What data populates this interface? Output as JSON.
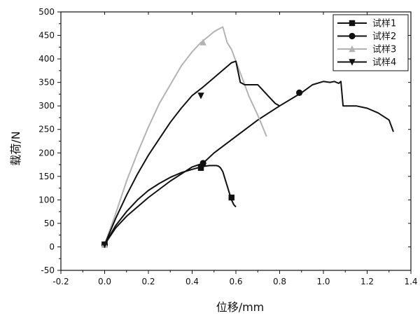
{
  "chart_data": {
    "type": "line",
    "title": "",
    "xlabel": "位移/mm",
    "ylabel": "载荷/N",
    "xlim": [
      -0.2,
      1.4
    ],
    "ylim": [
      -50,
      500
    ],
    "xticks": [
      "-0.2",
      "0.0",
      "0.2",
      "0.4",
      "0.6",
      "0.8",
      "1.0",
      "1.2",
      "1.4"
    ],
    "yticks": [
      "-50",
      "0",
      "50",
      "100",
      "150",
      "200",
      "250",
      "300",
      "350",
      "400",
      "450",
      "500"
    ],
    "legend_position": "top-right",
    "series": [
      {
        "name": "试样1",
        "color": "#111111",
        "marker": "square",
        "x": [
          0,
          0.05,
          0.1,
          0.15,
          0.2,
          0.25,
          0.3,
          0.35,
          0.4,
          0.44,
          0.46,
          0.48,
          0.5,
          0.51,
          0.52,
          0.53,
          0.54,
          0.55,
          0.56,
          0.57,
          0.58,
          0.59,
          0.6
        ],
        "y": [
          5,
          45,
          75,
          100,
          120,
          135,
          148,
          158,
          165,
          170,
          172,
          173,
          173,
          173,
          172,
          168,
          160,
          145,
          130,
          115,
          100,
          90,
          85
        ],
        "markers": [
          [
            0,
            5
          ],
          [
            0.44,
            168
          ],
          [
            0.58,
            105
          ]
        ]
      },
      {
        "name": "试样2",
        "color": "#111111",
        "marker": "circle",
        "x": [
          0,
          0.05,
          0.1,
          0.2,
          0.3,
          0.4,
          0.45,
          0.5,
          0.6,
          0.7,
          0.8,
          0.9,
          0.95,
          1.0,
          1.03,
          1.05,
          1.07,
          1.08,
          1.09,
          1.1,
          1.15,
          1.2,
          1.25,
          1.3,
          1.32
        ],
        "y": [
          5,
          40,
          65,
          105,
          140,
          170,
          178,
          200,
          235,
          270,
          300,
          328,
          345,
          352,
          350,
          352,
          348,
          352,
          300,
          300,
          300,
          295,
          285,
          270,
          245
        ],
        "markers": [
          [
            0,
            5
          ],
          [
            0.45,
            178
          ],
          [
            0.89,
            328
          ]
        ]
      },
      {
        "name": "试样3",
        "color": "#b3b3b3",
        "marker": "triangle-up",
        "x": [
          0,
          0.05,
          0.1,
          0.15,
          0.2,
          0.25,
          0.3,
          0.35,
          0.4,
          0.44,
          0.48,
          0.5,
          0.52,
          0.54,
          0.56,
          0.58,
          0.62,
          0.66,
          0.7,
          0.74
        ],
        "y": [
          5,
          70,
          140,
          200,
          255,
          305,
          345,
          385,
          415,
          435,
          450,
          458,
          463,
          468,
          435,
          420,
          370,
          320,
          280,
          235
        ],
        "markers": [
          [
            0,
            5
          ],
          [
            0.45,
            435
          ]
        ]
      },
      {
        "name": "试样4",
        "color": "#111111",
        "marker": "triangle-down",
        "x": [
          0,
          0.05,
          0.1,
          0.15,
          0.2,
          0.25,
          0.3,
          0.35,
          0.4,
          0.45,
          0.5,
          0.55,
          0.58,
          0.6,
          0.62,
          0.64,
          0.66,
          0.7,
          0.72,
          0.75,
          0.78,
          0.8
        ],
        "y": [
          5,
          60,
          110,
          155,
          195,
          230,
          265,
          295,
          322,
          340,
          360,
          380,
          392,
          395,
          350,
          345,
          345,
          345,
          335,
          320,
          305,
          300
        ],
        "markers": [
          [
            0,
            5
          ],
          [
            0.44,
            322
          ]
        ]
      }
    ]
  }
}
